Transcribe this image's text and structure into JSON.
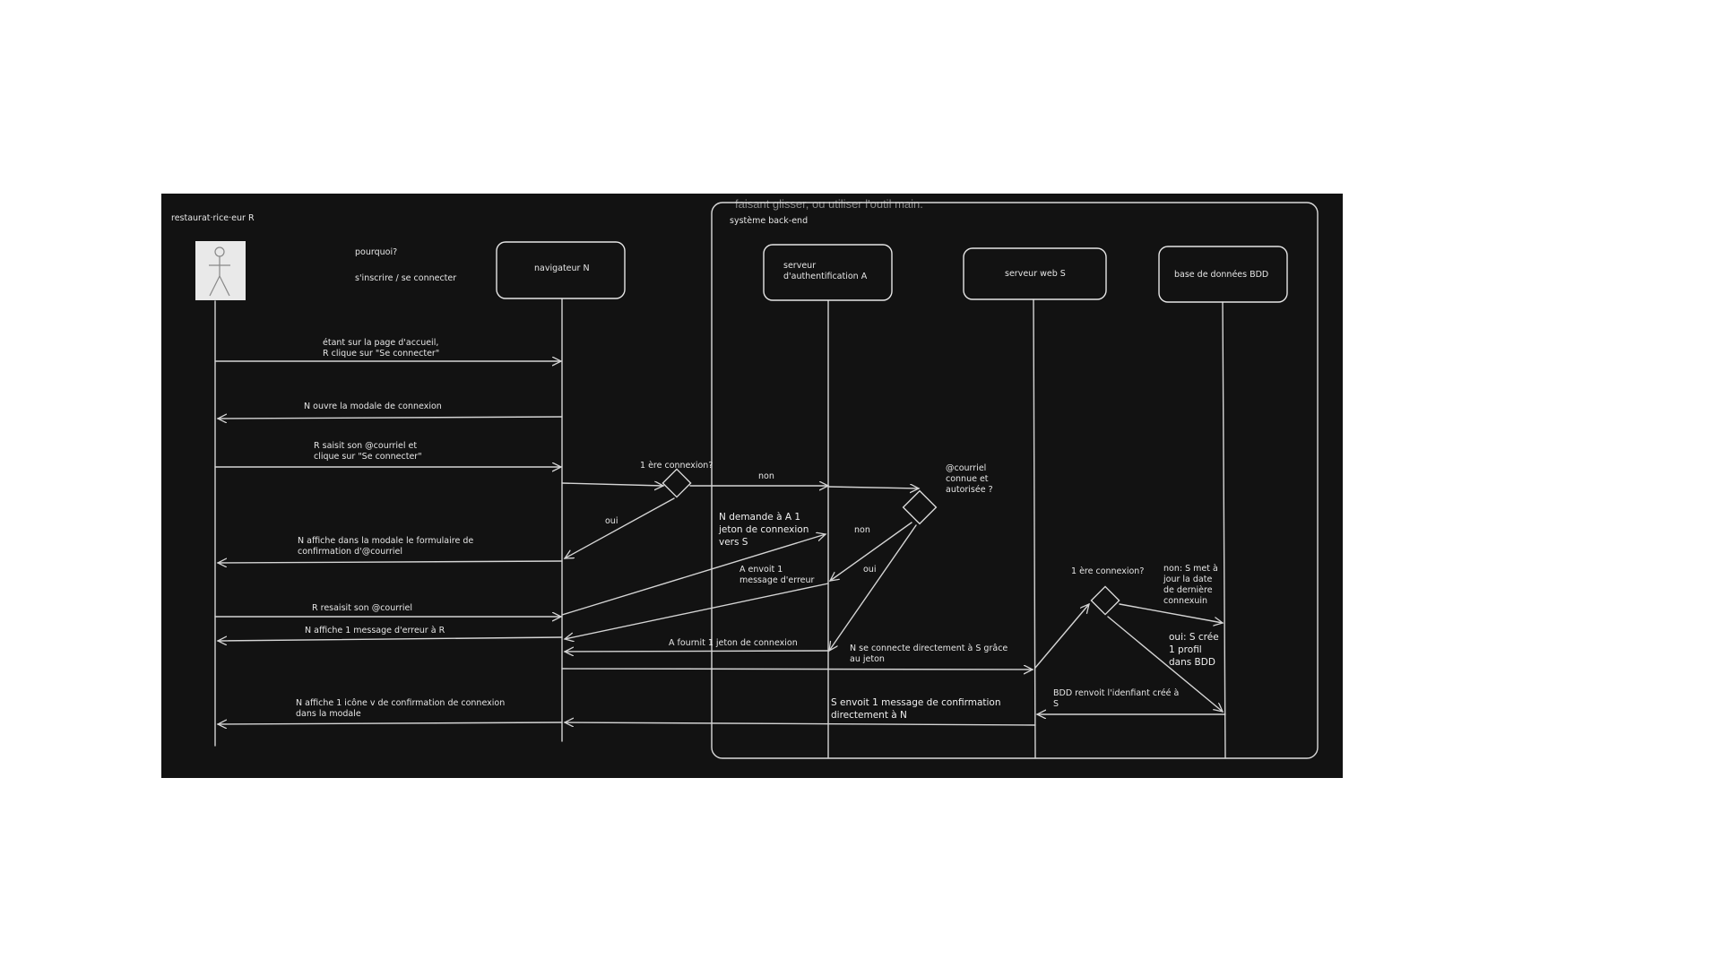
{
  "canvas": {
    "background": "#121212",
    "stroke_color": "#d9d9d9",
    "overlay_hint": "faisant glisser, ou utiliser l'outil main."
  },
  "actor": {
    "label": "restaurat·rice·eur R",
    "icon": "stick-figure-icon"
  },
  "notes": {
    "question": "pourquoi?",
    "purpose": "s'inscrire / se connecter"
  },
  "backend_group": {
    "label": "système back-end"
  },
  "participants": [
    {
      "id": "N",
      "label": "navigateur N"
    },
    {
      "id": "A",
      "label": "serveur d'authentification A"
    },
    {
      "id": "S",
      "label": "serveur web S"
    },
    {
      "id": "BDD",
      "label": "base de données BDD"
    }
  ],
  "decisions": [
    {
      "label": "1 ère connexion?"
    },
    {
      "label": "@courriel connue et autorisée ?"
    },
    {
      "label": "1 ère connexion?"
    }
  ],
  "messages": [
    {
      "label": "étant sur la page d'accueil, R clique sur \"Se connecter\""
    },
    {
      "label": "N ouvre la modale de connexion"
    },
    {
      "label": "R saisit son @courriel et clique sur \"Se connecter\""
    },
    {
      "label": "non"
    },
    {
      "label": "oui"
    },
    {
      "label": "N demande à A 1 jeton de connexion vers S"
    },
    {
      "label": "N affiche dans la modale le formulaire de confirmation d'@courriel"
    },
    {
      "label": "non"
    },
    {
      "label": "oui"
    },
    {
      "label": "A envoit 1 message d'erreur"
    },
    {
      "label": "R resaisit son @courriel"
    },
    {
      "label": "N affiche 1 message d'erreur à R"
    },
    {
      "label": "A fournit 1 jeton de connexion"
    },
    {
      "label": "N se connecte directement à S grâce au jeton"
    },
    {
      "label": "non: S met à jour la date de dernière connexuin"
    },
    {
      "label": "oui: S crée 1 profil dans BDD"
    },
    {
      "label": "BDD renvoit l'idenfiant créé à S"
    },
    {
      "label": "S envoit 1 message de confirmation directement à N"
    },
    {
      "label": "N affiche 1 icône v de confirmation de connexion dans la modale"
    }
  ]
}
